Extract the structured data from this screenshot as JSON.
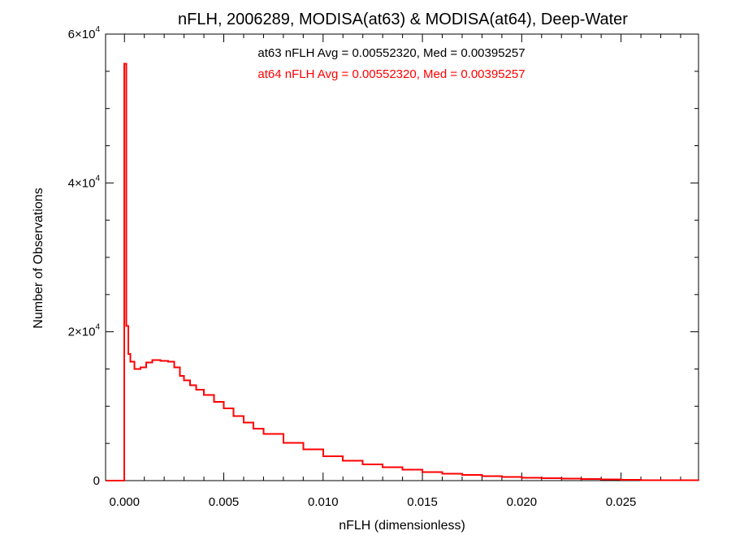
{
  "chart_data": {
    "type": "histogram-step",
    "title": "nFLH, 2006289, MODISA(at63) & MODISA(at64), Deep-Water",
    "xlabel": "nFLH (dimensionless)",
    "ylabel": "Number of Observations",
    "xlim": [
      -0.00095,
      0.0289
    ],
    "ylim": [
      0,
      60000
    ],
    "grid": false,
    "x_ticks": [
      {
        "value": 0.0,
        "label": "0.000"
      },
      {
        "value": 0.005,
        "label": "0.005"
      },
      {
        "value": 0.01,
        "label": "0.010"
      },
      {
        "value": 0.015,
        "label": "0.015"
      },
      {
        "value": 0.02,
        "label": "0.020"
      },
      {
        "value": 0.025,
        "label": "0.025"
      }
    ],
    "x_minor_ticks": [
      0.001,
      0.002,
      0.003,
      0.004,
      0.006,
      0.007,
      0.008,
      0.009,
      0.011,
      0.012,
      0.013,
      0.014,
      0.016,
      0.017,
      0.018,
      0.019,
      0.021,
      0.022,
      0.023,
      0.024,
      0.026,
      0.027,
      0.028
    ],
    "y_ticks": [
      {
        "value": 0,
        "label": "0",
        "exp": ""
      },
      {
        "value": 20000,
        "label": "2×10",
        "exp": "4"
      },
      {
        "value": 40000,
        "label": "4×10",
        "exp": "4"
      },
      {
        "value": 60000,
        "label": "6×10",
        "exp": "4"
      }
    ],
    "y_minor_ticks": [
      5000,
      10000,
      15000,
      25000,
      30000,
      35000,
      45000,
      50000,
      55000
    ],
    "annotations": [
      {
        "text": "at63 nFLH Avg = 0.00552320, Med = 0.00395257",
        "color": "#000000"
      },
      {
        "text": "at64 nFLH Avg = 0.00552320, Med = 0.00395257",
        "color": "#ff0000"
      }
    ],
    "series": [
      {
        "color": "#ff0000",
        "x": [
          -0.0009,
          -0.0001,
          0.0,
          0.0001,
          0.0002,
          0.0003,
          0.0005,
          0.0008,
          0.0011,
          0.0014,
          0.0018,
          0.0022,
          0.0025,
          0.0028,
          0.003,
          0.0033,
          0.0036,
          0.004,
          0.0045,
          0.005,
          0.0055,
          0.006,
          0.0065,
          0.007,
          0.008,
          0.009,
          0.01,
          0.011,
          0.012,
          0.013,
          0.014,
          0.015,
          0.016,
          0.017,
          0.018,
          0.019,
          0.02,
          0.021,
          0.022,
          0.023,
          0.024,
          0.025,
          0.026,
          0.027,
          0.028,
          0.0289
        ],
        "y": [
          0,
          0,
          56000,
          20800,
          17000,
          16000,
          15000,
          15200,
          15900,
          16200,
          16100,
          16000,
          15200,
          14100,
          13500,
          12800,
          12200,
          11500,
          10600,
          9700,
          8700,
          7800,
          7000,
          6300,
          5100,
          4200,
          3300,
          2700,
          2200,
          1800,
          1450,
          1150,
          950,
          780,
          620,
          500,
          400,
          320,
          250,
          200,
          150,
          110,
          80,
          60,
          40,
          30
        ]
      }
    ]
  }
}
